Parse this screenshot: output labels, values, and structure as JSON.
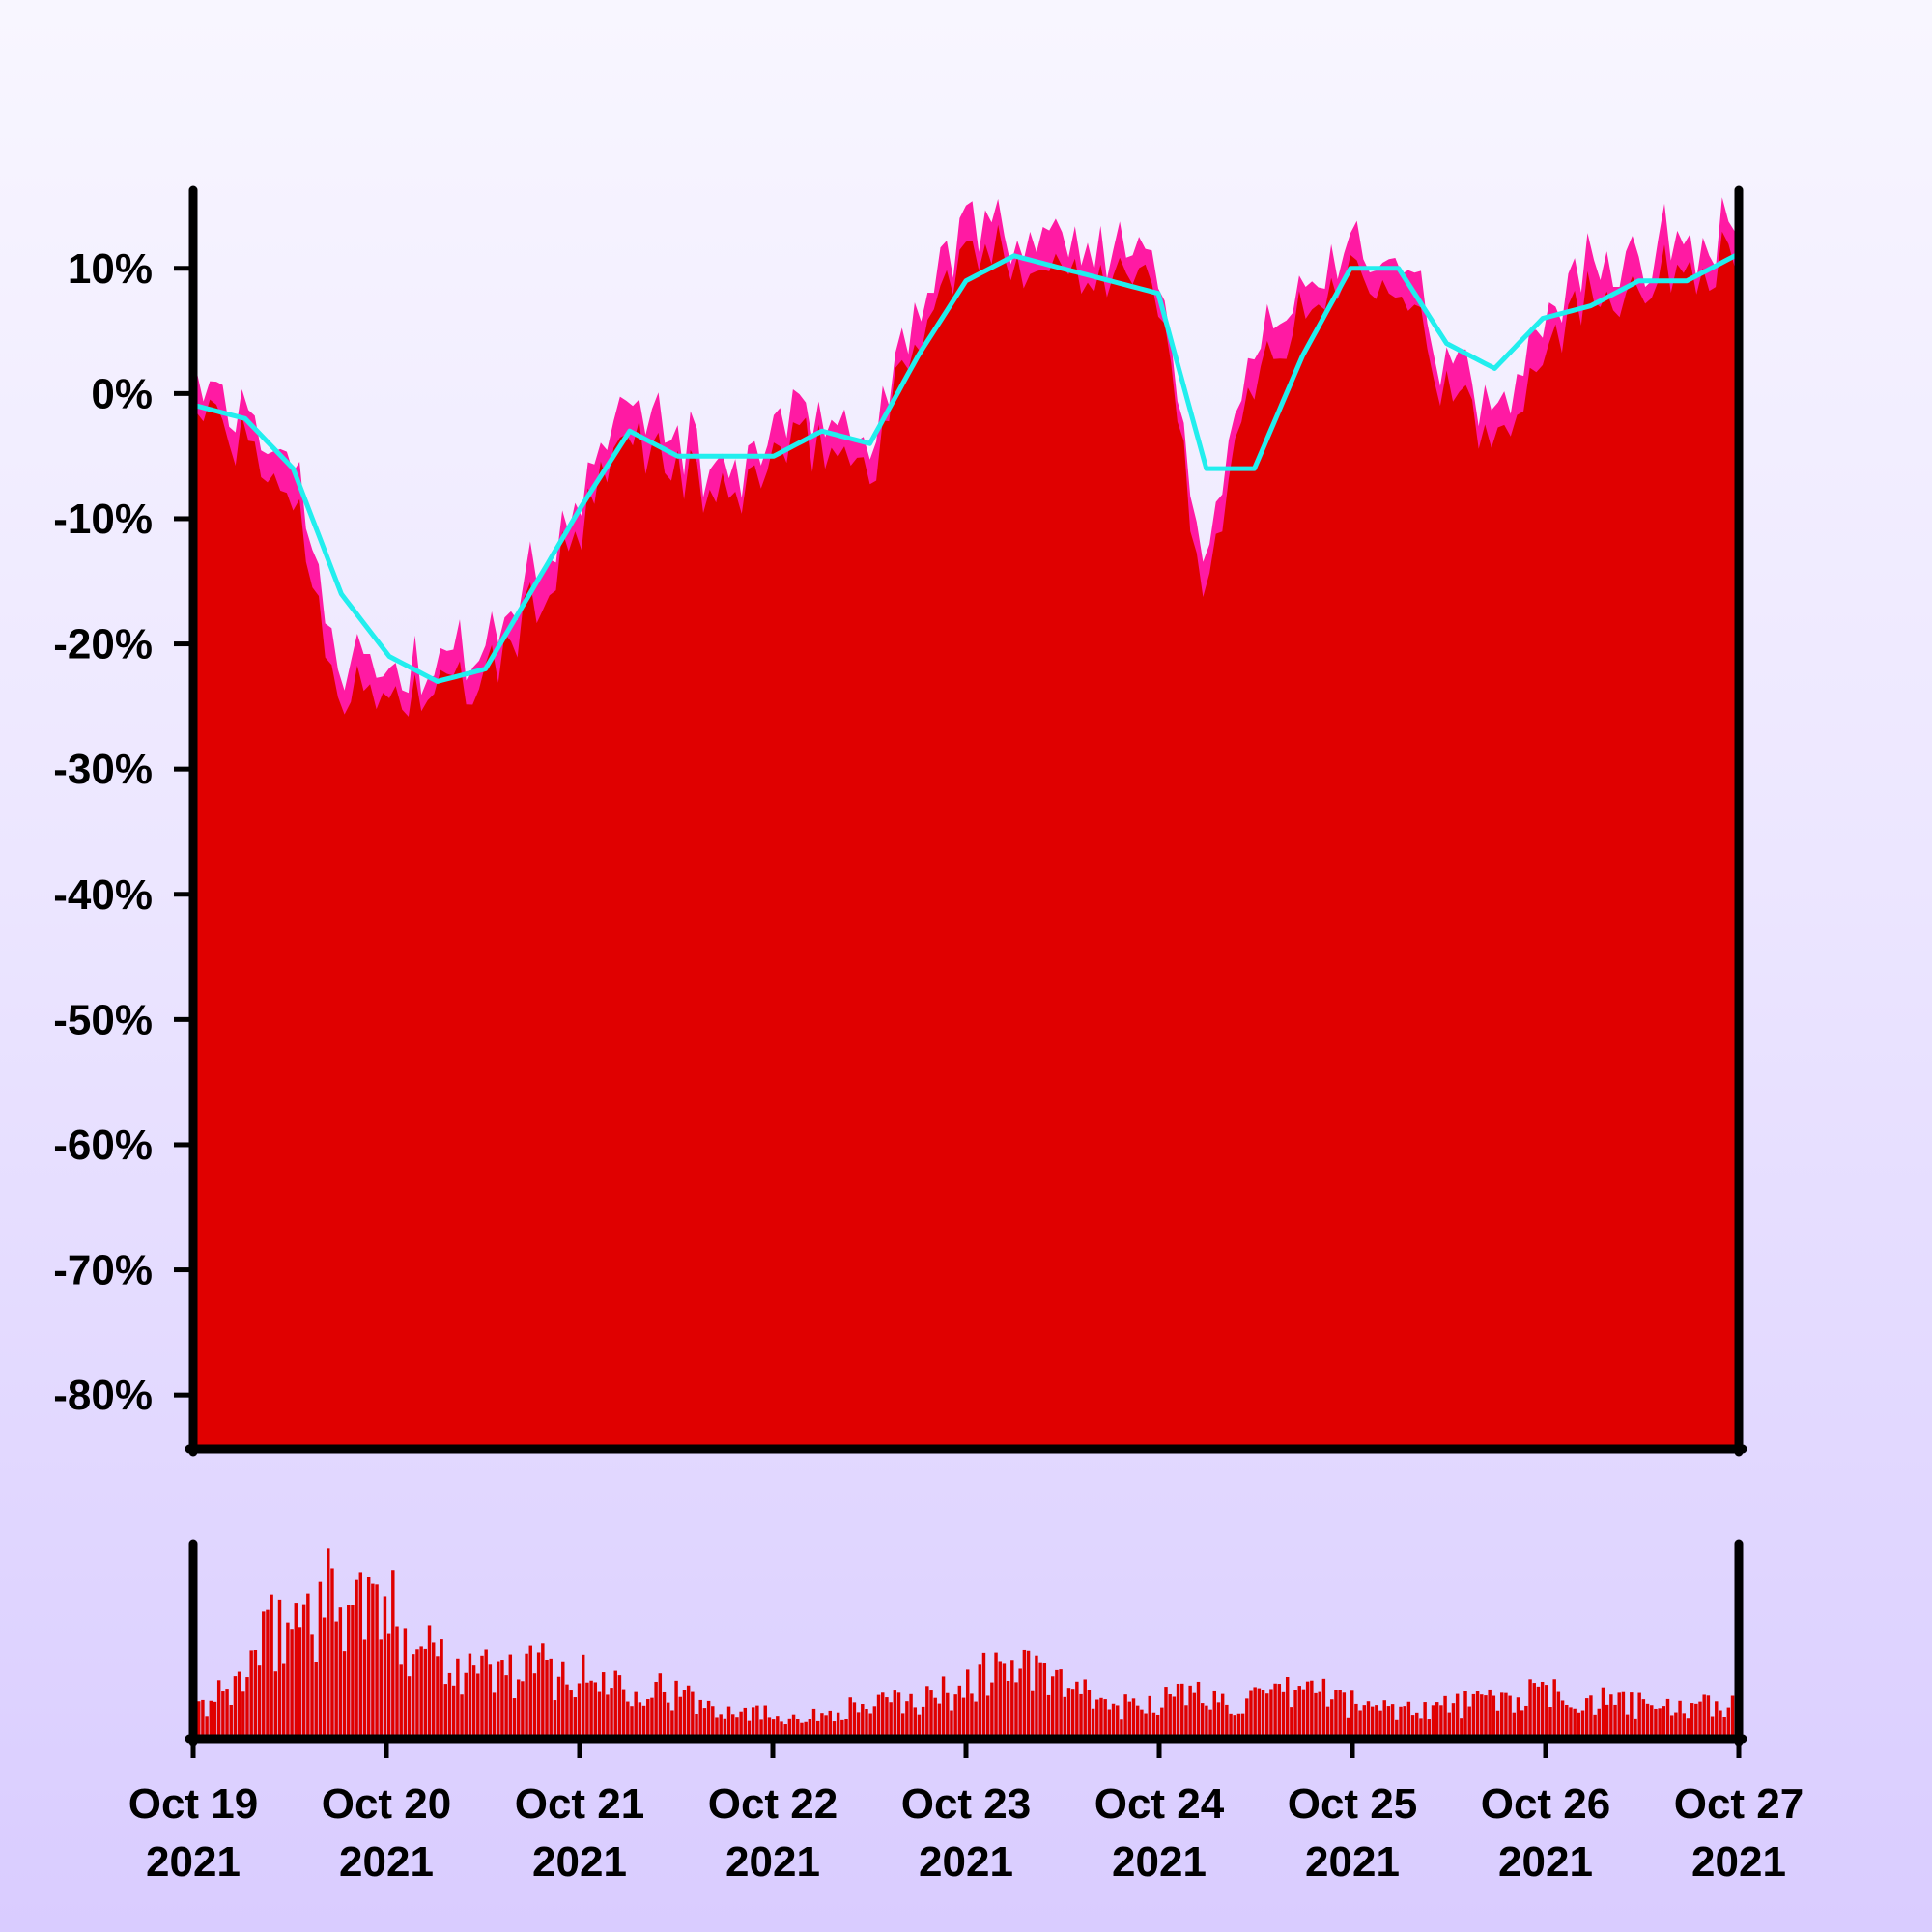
{
  "chart_data": [
    {
      "type": "area",
      "y_unit": "%",
      "ylim": [
        -84,
        16
      ],
      "y_ticks": [
        10,
        0,
        -10,
        -20,
        -30,
        -40,
        -50,
        -60,
        -70,
        -80
      ],
      "y_tick_labels": [
        "10%",
        "0%",
        "-10%",
        "-20%",
        "-30%",
        "-40%",
        "-50%",
        "-60%",
        "-70%",
        "-80%"
      ],
      "grid": false,
      "legend": "none",
      "colors": {
        "area": "#e00000",
        "high_band": "#ff1aa3",
        "moving_average": "#22eeee"
      },
      "series": [
        {
          "x": [
            "2021-10-19",
            "2021-10-19 12:00",
            "2021-10-19 18:00",
            "2021-10-20",
            "2021-10-20 06:00",
            "2021-10-20 12:00",
            "2021-10-21",
            "2021-10-21 06:00",
            "2021-10-21 12:00",
            "2021-10-21 18:00",
            "2021-10-22",
            "2021-10-22 06:00",
            "2021-10-22 12:00",
            "2021-10-22 18:00",
            "2021-10-23",
            "2021-10-23 06:00",
            "2021-10-23 12:00",
            "2021-10-23 18:00",
            "2021-10-24",
            "2021-10-24 06:00",
            "2021-10-24 12:00",
            "2021-10-24 18:00",
            "2021-10-25",
            "2021-10-25 06:00",
            "2021-10-25 12:00",
            "2021-10-25 18:00",
            "2021-10-26",
            "2021-10-26 06:00",
            "2021-10-26 12:00",
            "2021-10-26 18:00",
            "2021-10-27"
          ],
          "values": [
            -1,
            -8,
            -24,
            -24,
            -24,
            -23,
            -11,
            -3,
            -6,
            -9,
            -5,
            -4,
            -6,
            5,
            11,
            11,
            10,
            10,
            8,
            -17,
            2,
            6,
            10,
            10,
            0,
            -4,
            4,
            8,
            9,
            10,
            11
          ]
        },
        {
          "x": [
            "2021-10-19",
            "2021-10-19 06:00",
            "2021-10-19 12:00",
            "2021-10-19 18:00",
            "2021-10-20",
            "2021-10-20 06:00",
            "2021-10-20 12:00",
            "2021-10-21",
            "2021-10-21 06:00",
            "2021-10-21 12:00",
            "2021-10-22",
            "2021-10-22 06:00",
            "2021-10-22 12:00",
            "2021-10-22 18:00",
            "2021-10-23",
            "2021-10-23 06:00",
            "2021-10-23 12:00",
            "2021-10-23 18:00",
            "2021-10-24",
            "2021-10-24 06:00",
            "2021-10-24 12:00",
            "2021-10-24 18:00",
            "2021-10-25",
            "2021-10-25 06:00",
            "2021-10-25 12:00",
            "2021-10-25 18:00",
            "2021-10-26",
            "2021-10-26 06:00",
            "2021-10-26 12:00",
            "2021-10-26 18:00",
            "2021-10-27"
          ],
          "values": [
            -1,
            -2,
            -6,
            -16,
            -21,
            -23,
            -22,
            -9,
            -3,
            -5,
            -5,
            -3,
            -4,
            3,
            9,
            11,
            10,
            9,
            8,
            -6,
            -6,
            3,
            10,
            10,
            4,
            2,
            6,
            7,
            9,
            9,
            11
          ]
        }
      ]
    },
    {
      "type": "bar",
      "grid": false,
      "legend": "none",
      "colors": {
        "bars": "#e00000"
      },
      "x_range": [
        "2021-10-19",
        "2021-10-27"
      ],
      "bar_values_envelope": [
        10,
        22,
        45,
        58,
        62,
        52,
        42,
        30,
        28,
        30,
        25,
        24,
        22,
        14,
        12,
        9,
        8,
        12,
        14,
        16,
        22,
        32,
        26,
        18,
        12,
        16,
        18,
        14,
        16,
        22,
        14,
        12,
        12,
        14,
        16,
        18,
        16,
        14,
        12,
        12,
        14
      ],
      "ylim": [
        0,
        70
      ],
      "x_ticks": [
        "Oct 19 2021",
        "Oct 20 2021",
        "Oct 21 2021",
        "Oct 22 2021",
        "Oct 23 2021",
        "Oct 24 2021",
        "Oct 25 2021",
        "Oct 26 2021",
        "Oct 27 2021"
      ],
      "x_tick_labels": [
        {
          "line1": "Oct 19",
          "line2": "2021"
        },
        {
          "line1": "Oct 20",
          "line2": "2021"
        },
        {
          "line1": "Oct 21",
          "line2": "2021"
        },
        {
          "line1": "Oct 22",
          "line2": "2021"
        },
        {
          "line1": "Oct 23",
          "line2": "2021"
        },
        {
          "line1": "Oct 24",
          "line2": "2021"
        },
        {
          "line1": "Oct 25",
          "line2": "2021"
        },
        {
          "line1": "Oct 26",
          "line2": "2021"
        },
        {
          "line1": "Oct 27",
          "line2": "2021"
        }
      ]
    }
  ]
}
